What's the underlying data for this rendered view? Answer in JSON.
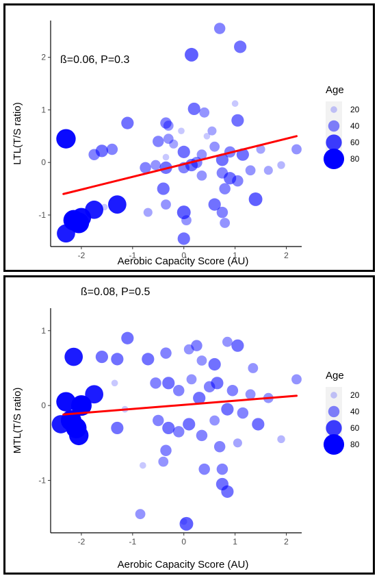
{
  "chart_data": [
    {
      "type": "scatter",
      "panel": "top",
      "xlabel": "Aerobic Capacity Score (AU)",
      "ylabel": "LTL(T/S ratio)",
      "annotation": "ß=0.06, P=0.3",
      "xlim": [
        -2.6,
        2.3
      ],
      "ylim": [
        -1.6,
        2.7
      ],
      "xticks": [
        -2,
        -1,
        0,
        1,
        2
      ],
      "yticks": [
        -1,
        0,
        1,
        2
      ],
      "xtick_labels": [
        "-2",
        "-1",
        "0",
        "1",
        "2"
      ],
      "ytick_labels": [
        "-1",
        "0",
        "1",
        "2"
      ],
      "grid": false,
      "legend": {
        "title": "Age",
        "placement": "right",
        "entries": [
          "20",
          "40",
          "60",
          "80"
        ],
        "values": [
          20,
          40,
          60,
          80
        ]
      },
      "colors": {
        "points": "#0000ff",
        "line": "#ff0000"
      },
      "fit_line": {
        "x": [
          -2.35,
          2.2
        ],
        "y": [
          -0.6,
          0.5
        ]
      },
      "points": [
        {
          "x": 0.7,
          "y": 2.55,
          "age": 40
        },
        {
          "x": 0.15,
          "y": 2.05,
          "age": 50
        },
        {
          "x": 1.1,
          "y": 2.2,
          "age": 45
        },
        {
          "x": -2.3,
          "y": 0.45,
          "age": 75
        },
        {
          "x": -1.1,
          "y": 0.75,
          "age": 45
        },
        {
          "x": -0.35,
          "y": 0.75,
          "age": 40
        },
        {
          "x": -0.3,
          "y": 0.7,
          "age": 35
        },
        {
          "x": 0.2,
          "y": 1.02,
          "age": 45
        },
        {
          "x": 0.4,
          "y": 0.95,
          "age": 35
        },
        {
          "x": 0.55,
          "y": 0.6,
          "age": 30
        },
        {
          "x": 1.05,
          "y": 0.8,
          "age": 45
        },
        {
          "x": 1.0,
          "y": 1.12,
          "age": 20
        },
        {
          "x": -1.4,
          "y": 0.25,
          "age": 40
        },
        {
          "x": -1.6,
          "y": 0.22,
          "age": 45
        },
        {
          "x": -1.75,
          "y": 0.15,
          "age": 40
        },
        {
          "x": -0.5,
          "y": 0.4,
          "age": 40
        },
        {
          "x": -0.3,
          "y": 0.45,
          "age": 35
        },
        {
          "x": -0.2,
          "y": 0.35,
          "age": 30
        },
        {
          "x": 0.0,
          "y": 0.2,
          "age": 45
        },
        {
          "x": 0.25,
          "y": 0.0,
          "age": 40
        },
        {
          "x": 0.35,
          "y": 0.15,
          "age": 35
        },
        {
          "x": 0.6,
          "y": 0.3,
          "age": 35
        },
        {
          "x": 0.75,
          "y": 0.05,
          "age": 45
        },
        {
          "x": 0.9,
          "y": 0.2,
          "age": 40
        },
        {
          "x": 1.15,
          "y": 0.15,
          "age": 45
        },
        {
          "x": 1.5,
          "y": 0.25,
          "age": 30
        },
        {
          "x": 2.2,
          "y": 0.25,
          "age": 35
        },
        {
          "x": -0.75,
          "y": -0.1,
          "age": 40
        },
        {
          "x": -0.55,
          "y": -0.05,
          "age": 35
        },
        {
          "x": -0.35,
          "y": -0.1,
          "age": 45
        },
        {
          "x": 0.0,
          "y": -0.1,
          "age": 40
        },
        {
          "x": 0.15,
          "y": -0.05,
          "age": 45
        },
        {
          "x": 0.35,
          "y": -0.25,
          "age": 35
        },
        {
          "x": 0.75,
          "y": -0.2,
          "age": 40
        },
        {
          "x": 0.9,
          "y": -0.3,
          "age": 45
        },
        {
          "x": 1.05,
          "y": -0.35,
          "age": 40
        },
        {
          "x": 1.3,
          "y": -0.15,
          "age": 35
        },
        {
          "x": 1.65,
          "y": -0.15,
          "age": 30
        },
        {
          "x": 1.9,
          "y": -0.05,
          "age": 25
        },
        {
          "x": -0.4,
          "y": -0.5,
          "age": 45
        },
        {
          "x": -0.35,
          "y": -0.8,
          "age": 35
        },
        {
          "x": 0.6,
          "y": -0.8,
          "age": 45
        },
        {
          "x": 0.75,
          "y": -0.95,
          "age": 40
        },
        {
          "x": 0.8,
          "y": -1.15,
          "age": 35
        },
        {
          "x": 1.4,
          "y": -0.7,
          "age": 50
        },
        {
          "x": 0.0,
          "y": -0.95,
          "age": 50
        },
        {
          "x": 0.05,
          "y": -1.1,
          "age": 35
        },
        {
          "x": 0.0,
          "y": -1.45,
          "age": 45
        },
        {
          "x": -1.55,
          "y": -0.85,
          "age": 20
        },
        {
          "x": -0.7,
          "y": -0.95,
          "age": 30
        },
        {
          "x": -2.3,
          "y": -1.35,
          "age": 70
        },
        {
          "x": -2.15,
          "y": -1.1,
          "age": 80
        },
        {
          "x": -2.05,
          "y": -1.15,
          "age": 80
        },
        {
          "x": -2.0,
          "y": -1.05,
          "age": 75
        },
        {
          "x": -1.75,
          "y": -0.9,
          "age": 70
        },
        {
          "x": -1.3,
          "y": -0.8,
          "age": 70
        },
        {
          "x": 0.8,
          "y": -0.5,
          "age": 40
        },
        {
          "x": -0.05,
          "y": 0.6,
          "age": 20
        },
        {
          "x": 0.45,
          "y": 0.5,
          "age": 20
        },
        {
          "x": -0.35,
          "y": 0.1,
          "age": 20
        }
      ]
    },
    {
      "type": "scatter",
      "panel": "bottom",
      "xlabel": "Aerobic Capacity Score (AU)",
      "ylabel": "MTL(T/S ratio)",
      "annotation": "ß=0.08, P=0.5",
      "xlim": [
        -2.6,
        2.3
      ],
      "ylim": [
        -1.7,
        1.3
      ],
      "xticks": [
        -2,
        -1,
        0,
        1,
        2
      ],
      "yticks": [
        -1,
        0,
        1
      ],
      "xtick_labels": [
        "-2",
        "-1",
        "0",
        "1",
        "2"
      ],
      "ytick_labels": [
        "-1",
        "0",
        "1"
      ],
      "grid": false,
      "legend": {
        "title": "Age",
        "placement": "right",
        "entries": [
          "20",
          "40",
          "60",
          "80"
        ],
        "values": [
          20,
          40,
          60,
          80
        ]
      },
      "colors": {
        "points": "#0000ff",
        "line": "#ff0000"
      },
      "fit_line": {
        "x": [
          -2.35,
          2.2
        ],
        "y": [
          -0.12,
          0.13
        ]
      },
      "points": [
        {
          "x": -1.1,
          "y": 0.9,
          "age": 45
        },
        {
          "x": -1.6,
          "y": 0.65,
          "age": 45
        },
        {
          "x": -1.3,
          "y": 0.62,
          "age": 45
        },
        {
          "x": -0.7,
          "y": 0.62,
          "age": 45
        },
        {
          "x": -0.35,
          "y": 0.7,
          "age": 40
        },
        {
          "x": 0.1,
          "y": 0.75,
          "age": 35
        },
        {
          "x": 0.25,
          "y": 0.8,
          "age": 40
        },
        {
          "x": 0.35,
          "y": 0.6,
          "age": 35
        },
        {
          "x": 0.6,
          "y": 0.55,
          "age": 45
        },
        {
          "x": 0.85,
          "y": 0.85,
          "age": 35
        },
        {
          "x": 1.05,
          "y": 0.8,
          "age": 45
        },
        {
          "x": 1.35,
          "y": 0.5,
          "age": 35
        },
        {
          "x": -2.15,
          "y": 0.65,
          "age": 70
        },
        {
          "x": -0.55,
          "y": 0.3,
          "age": 40
        },
        {
          "x": -0.3,
          "y": 0.3,
          "age": 45
        },
        {
          "x": -0.1,
          "y": 0.2,
          "age": 40
        },
        {
          "x": 0.15,
          "y": 0.35,
          "age": 35
        },
        {
          "x": 0.3,
          "y": 0.1,
          "age": 45
        },
        {
          "x": 0.5,
          "y": 0.25,
          "age": 40
        },
        {
          "x": 0.65,
          "y": 0.3,
          "age": 45
        },
        {
          "x": 0.95,
          "y": 0.2,
          "age": 40
        },
        {
          "x": 1.3,
          "y": 0.15,
          "age": 35
        },
        {
          "x": 1.65,
          "y": 0.1,
          "age": 35
        },
        {
          "x": 2.2,
          "y": 0.35,
          "age": 35
        },
        {
          "x": -1.75,
          "y": 0.15,
          "age": 70
        },
        {
          "x": -2.3,
          "y": 0.05,
          "age": 75
        },
        {
          "x": -2.0,
          "y": 0.0,
          "age": 80
        },
        {
          "x": -2.2,
          "y": -0.2,
          "age": 80
        },
        {
          "x": -2.4,
          "y": -0.25,
          "age": 70
        },
        {
          "x": -2.1,
          "y": -0.3,
          "age": 80
        },
        {
          "x": -2.05,
          "y": -0.4,
          "age": 75
        },
        {
          "x": -1.3,
          "y": -0.3,
          "age": 45
        },
        {
          "x": -0.5,
          "y": -0.2,
          "age": 40
        },
        {
          "x": -0.3,
          "y": -0.3,
          "age": 45
        },
        {
          "x": -0.1,
          "y": -0.35,
          "age": 40
        },
        {
          "x": 0.1,
          "y": -0.25,
          "age": 45
        },
        {
          "x": 0.35,
          "y": -0.4,
          "age": 40
        },
        {
          "x": 0.6,
          "y": -0.2,
          "age": 35
        },
        {
          "x": 0.85,
          "y": -0.05,
          "age": 45
        },
        {
          "x": 1.15,
          "y": -0.1,
          "age": 40
        },
        {
          "x": 1.45,
          "y": -0.25,
          "age": 45
        },
        {
          "x": -0.35,
          "y": -0.6,
          "age": 40
        },
        {
          "x": -0.4,
          "y": -0.75,
          "age": 35
        },
        {
          "x": 0.4,
          "y": -0.85,
          "age": 40
        },
        {
          "x": 0.7,
          "y": -0.55,
          "age": 40
        },
        {
          "x": 0.75,
          "y": -1.05,
          "age": 45
        },
        {
          "x": 0.85,
          "y": -1.15,
          "age": 45
        },
        {
          "x": 0.75,
          "y": -0.85,
          "age": 40
        },
        {
          "x": -0.85,
          "y": -1.45,
          "age": 35
        },
        {
          "x": 0.05,
          "y": -1.58,
          "age": 50
        },
        {
          "x": 1.05,
          "y": -0.5,
          "age": 30
        },
        {
          "x": 1.9,
          "y": -0.45,
          "age": 25
        },
        {
          "x": -0.8,
          "y": -0.8,
          "age": 20
        },
        {
          "x": -1.35,
          "y": 0.3,
          "age": 20
        },
        {
          "x": 0.0,
          "y": -1.55,
          "age": 20
        },
        {
          "x": -1.15,
          "y": -0.05,
          "age": 20
        }
      ]
    }
  ]
}
